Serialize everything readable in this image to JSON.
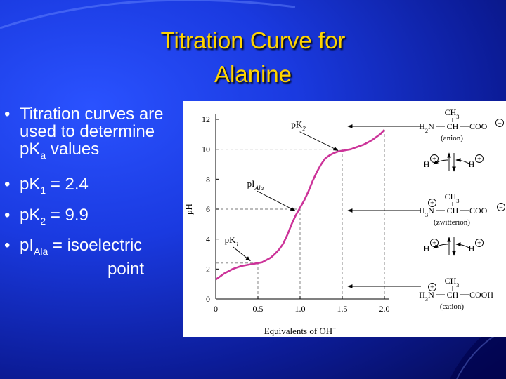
{
  "slide": {
    "title_line1": "Titration Curve for",
    "title_line2": "Alanine"
  },
  "bullets": {
    "b1_text": "Titration curves are used to determine pK",
    "b1_sub": "a",
    "b1_after": " values",
    "b2_pre": "pK",
    "b2_sub": "1",
    "b2_post": " = 2.4",
    "b3_pre": "pK",
    "b3_sub": "2",
    "b3_post": " = 9.9",
    "b4_pre": "pI",
    "b4_sub": "Ala",
    "b4_post": " = isoelectric",
    "b4_line2": "point"
  },
  "chart_data": {
    "type": "line",
    "xlabel": "Equivalents of OH",
    "xlabel_sup": "−",
    "ylabel": "pH",
    "xlim": [
      0,
      2.0
    ],
    "ylim": [
      0,
      12
    ],
    "xticks": [
      0,
      0.5,
      1.0,
      1.5,
      2.0
    ],
    "xtick_labels": [
      "0",
      "0.5",
      "1.0",
      "1.5",
      "2.0"
    ],
    "yticks": [
      0,
      2,
      4,
      6,
      8,
      10,
      12
    ],
    "ytick_labels": [
      "0",
      "2",
      "4",
      "6",
      "8",
      "10",
      "12"
    ],
    "grid": false,
    "curve_color": "#cc3399",
    "series": [
      {
        "x": [
          0,
          0.05,
          0.1,
          0.15,
          0.2,
          0.25,
          0.3,
          0.35,
          0.4,
          0.45,
          0.5,
          0.55,
          0.6,
          0.65,
          0.7,
          0.75,
          0.8,
          0.85,
          0.9,
          0.95,
          1.0,
          1.05,
          1.1,
          1.15,
          1.2,
          1.25,
          1.3,
          1.35,
          1.4,
          1.45,
          1.5,
          1.55,
          1.6,
          1.65,
          1.7,
          1.75,
          1.8,
          1.85,
          1.9,
          1.95,
          2.0
        ],
        "values": [
          1.3,
          1.5,
          1.7,
          1.85,
          2.0,
          2.1,
          2.2,
          2.25,
          2.3,
          2.35,
          2.4,
          2.45,
          2.6,
          2.75,
          3.0,
          3.3,
          3.7,
          4.3,
          5.0,
          5.6,
          6.1,
          6.6,
          7.2,
          7.9,
          8.5,
          9.0,
          9.4,
          9.6,
          9.75,
          9.85,
          9.9,
          9.95,
          10.0,
          10.1,
          10.2,
          10.3,
          10.45,
          10.6,
          10.8,
          11.0,
          11.3
        ]
      }
    ],
    "reference_lines": [
      {
        "y": 10,
        "x_end": 1.5
      },
      {
        "x": 1.5,
        "y_end": 10
      },
      {
        "y": 2.4,
        "x_end": 0.5
      },
      {
        "x": 0.5,
        "y_end": 2.4
      },
      {
        "y": 6,
        "x_end": 1.0
      },
      {
        "x": 1.0,
        "y_end": 6
      },
      {
        "x": 2.0,
        "y_end": 11.3
      }
    ],
    "annotations": [
      {
        "main": "pK",
        "sub": "2",
        "x": 0.98,
        "y": 11.45
      },
      {
        "main": "pI",
        "sub": "Ala",
        "x": 0.47,
        "y": 7.5
      },
      {
        "main": "pK",
        "sub": "1",
        "x": 0.19,
        "y": 3.75
      }
    ],
    "species": {
      "anion": {
        "ch3": "CH",
        "ch3_sub": "3",
        "left": "H",
        "left_sub": "2",
        "n": "N",
        "ch": "CH",
        "group": "COO",
        "name": "(anion)"
      },
      "zwitterion": {
        "ch3": "CH",
        "ch3_sub": "3",
        "left": "H",
        "left_sub": "3",
        "n": "N",
        "ch": "CH",
        "group": "COO",
        "name": "(zwitterion)"
      },
      "cation": {
        "ch3": "CH",
        "ch3_sub": "3",
        "left": "H",
        "left_sub": "3",
        "n": "N",
        "ch": "CH",
        "group": "COOH",
        "name": "(cation)"
      },
      "proton": "H",
      "plus": "+",
      "minus": "−"
    }
  }
}
